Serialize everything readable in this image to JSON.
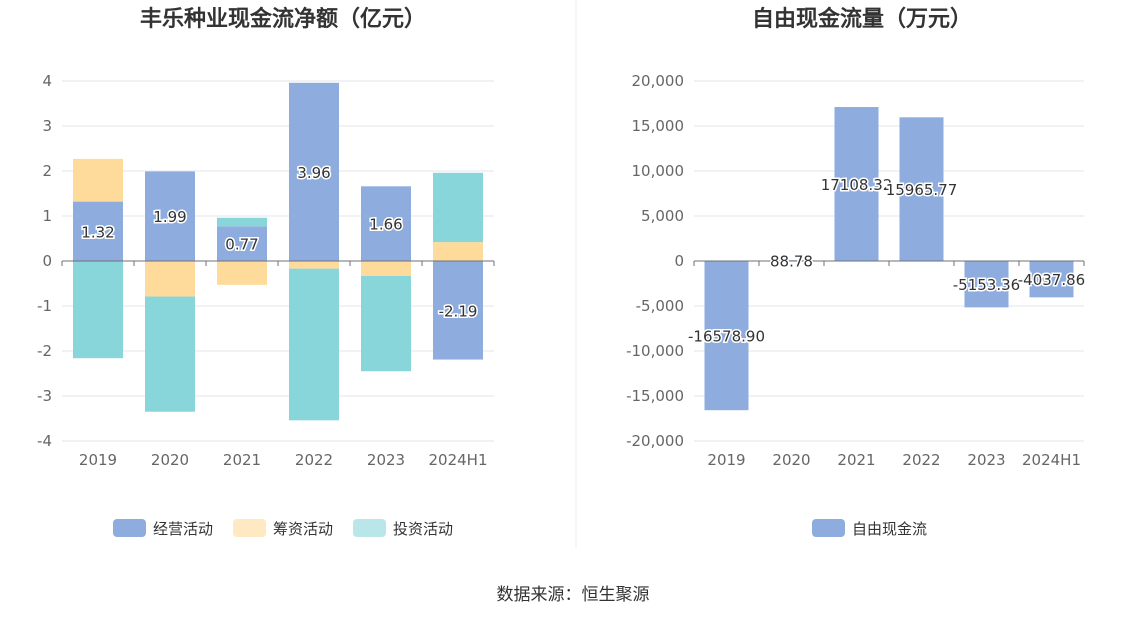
{
  "source": "数据来源：恒生聚源",
  "chart_data": [
    {
      "type": "bar",
      "stacked": true,
      "title": "丰乐种业现金流净额（亿元）",
      "categories": [
        "2019",
        "2020",
        "2021",
        "2022",
        "2023",
        "2024H1"
      ],
      "ylim": [
        -4,
        4
      ],
      "yticks": [
        "4",
        "3",
        "2",
        "1",
        "0",
        "-1",
        "-2",
        "-3",
        "-4"
      ],
      "grid": true,
      "legend_position": "bottom",
      "series": [
        {
          "name": "经营活动",
          "color": "#8eadde",
          "values": [
            1.32,
            1.99,
            0.77,
            3.96,
            1.66,
            -2.19
          ],
          "labels": [
            "1.32",
            "1.99",
            "0.77",
            "3.96",
            "1.66",
            "-2.19"
          ]
        },
        {
          "name": "筹资活动",
          "color": "#fedb9b",
          "values": [
            0.95,
            -0.79,
            -0.53,
            -0.17,
            -0.33,
            0.42
          ]
        },
        {
          "name": "投资活动",
          "color": "#88d5da",
          "values": [
            -2.16,
            -2.56,
            0.19,
            -3.37,
            -2.12,
            1.54
          ]
        }
      ]
    },
    {
      "type": "bar",
      "title": "自由现金流量（万元）",
      "categories": [
        "2019",
        "2020",
        "2021",
        "2022",
        "2023",
        "2024H1"
      ],
      "ylim": [
        -20000,
        20000
      ],
      "yticks": [
        "20,000",
        "15,000",
        "10,000",
        "5,000",
        "0",
        "-5,000",
        "-10,000",
        "-15,000",
        "-20,000"
      ],
      "grid": true,
      "legend_position": "bottom",
      "series": [
        {
          "name": "自由现金流",
          "color": "#8eadde",
          "values": [
            -16578.9,
            88.78,
            17108.32,
            15965.77,
            -5153.36,
            -4037.86
          ],
          "labels": [
            "-16578.90",
            "88.78",
            "17108.32",
            "15965.77",
            "-5153.36",
            "-4037.86"
          ]
        }
      ]
    }
  ]
}
